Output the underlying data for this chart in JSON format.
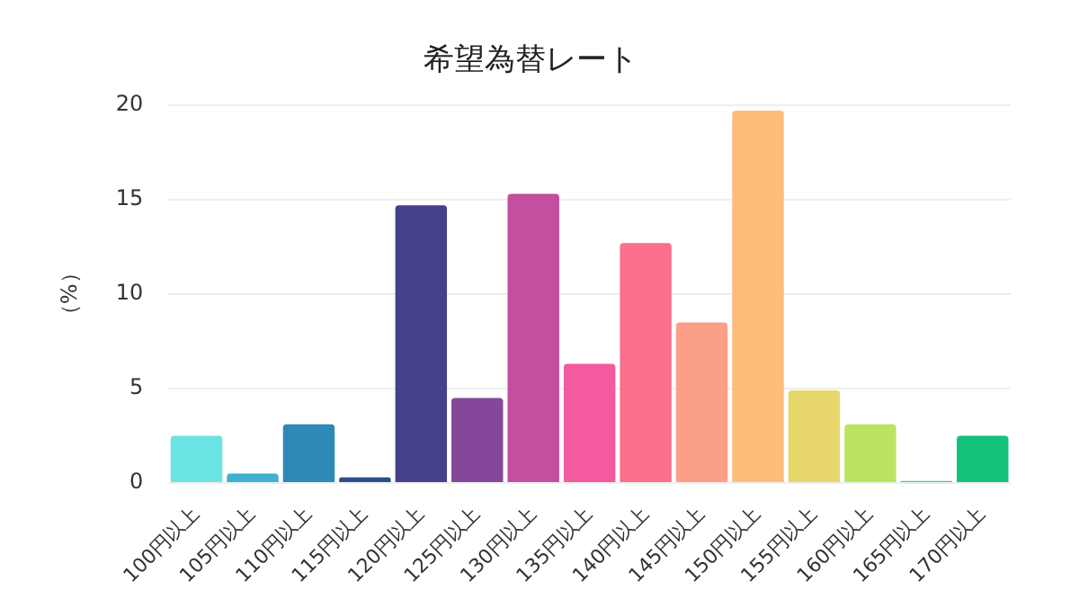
{
  "chart_data": {
    "type": "bar",
    "title": "希望為替レート",
    "ylabel": "（%）",
    "categories": [
      "100円以上",
      "105円以上",
      "110円以上",
      "115円以上",
      "120円以上",
      "125円以上",
      "130円以上",
      "135円以上",
      "140円以上",
      "145円以上",
      "150円以上",
      "155円以上",
      "160円以上",
      "165円以上",
      "170円以上"
    ],
    "values": [
      2.5,
      0.5,
      3.1,
      0.3,
      14.7,
      4.5,
      15.3,
      6.3,
      12.7,
      8.5,
      19.7,
      4.9,
      3.1,
      0.1,
      2.5
    ],
    "colors": [
      "#6ae3e3",
      "#3fb0d0",
      "#2e88b8",
      "#2a4f86",
      "#43418c",
      "#844799",
      "#c44ea0",
      "#f45a9e",
      "#fb6f8e",
      "#fb9f88",
      "#fdbd78",
      "#e7d76a",
      "#bbe460",
      "#52c97e",
      "#14c27a"
    ],
    "ylim": [
      0,
      20
    ],
    "yticks": [
      0,
      5,
      10,
      15,
      20
    ],
    "grid": "y"
  }
}
